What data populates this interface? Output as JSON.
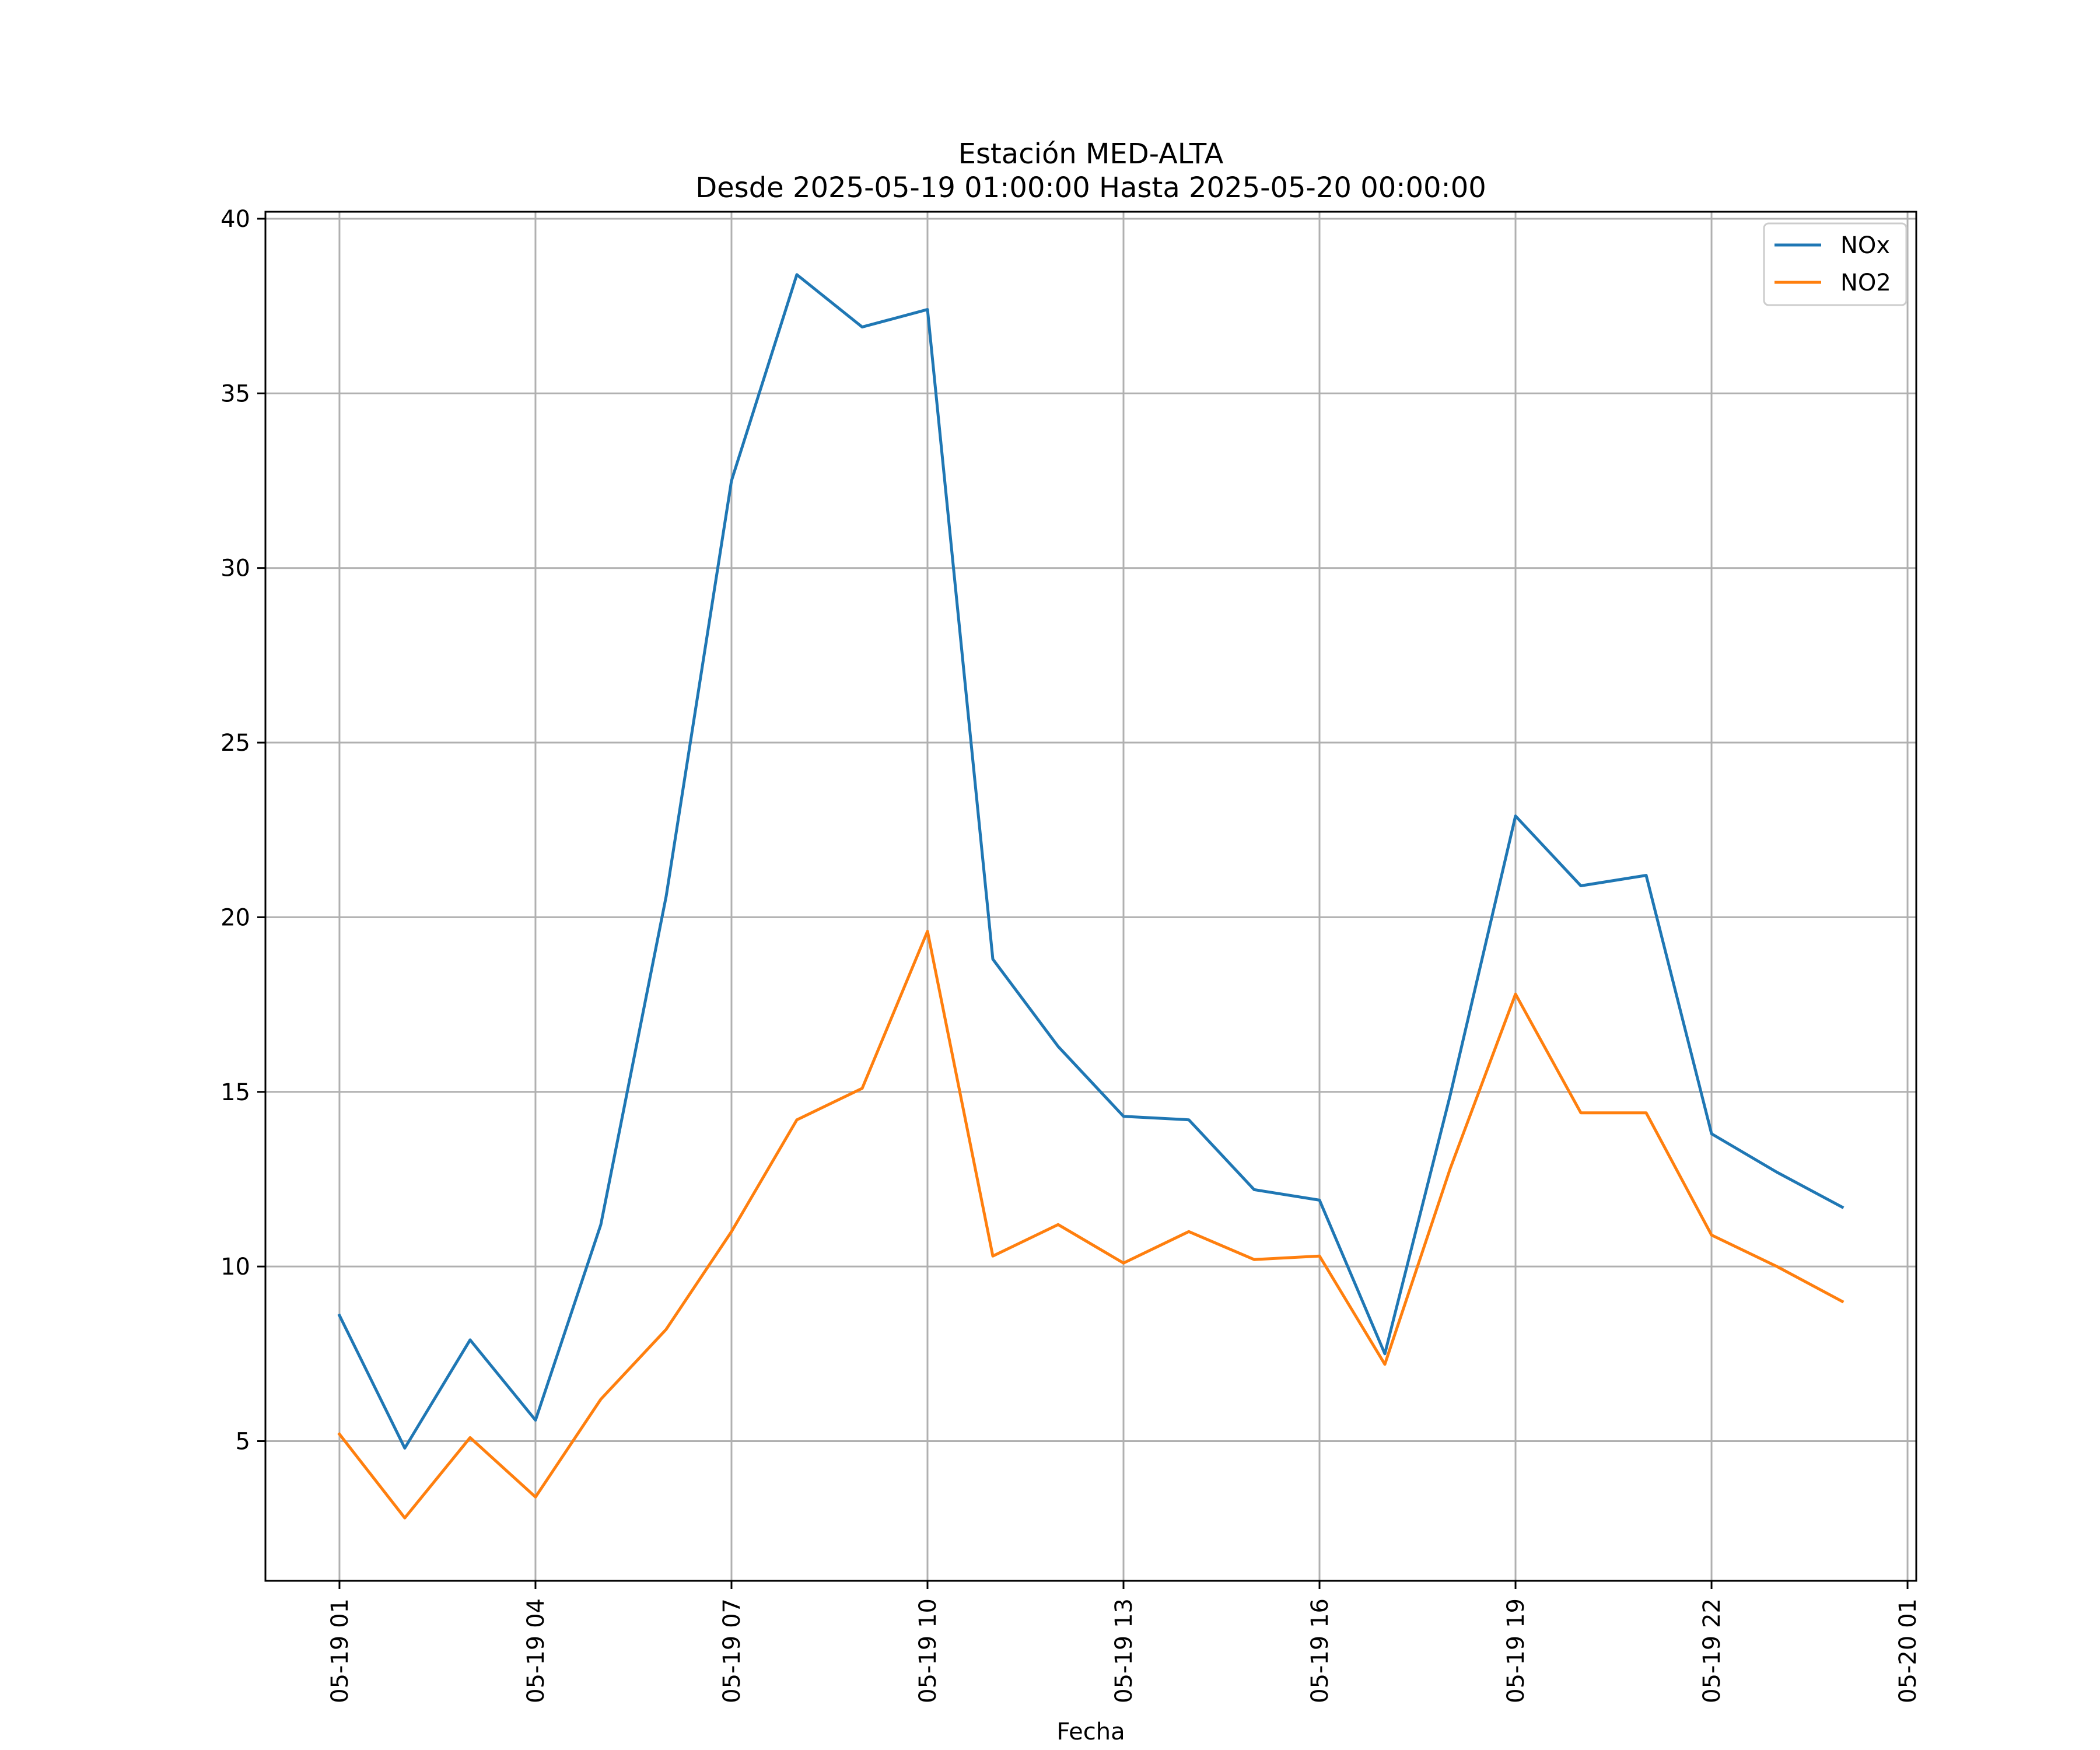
{
  "chart_data": {
    "type": "line",
    "title": "Estación MED-ALTA",
    "subtitle": "Desde 2025-05-19 01:00:00 Hasta 2025-05-20 00:00:00",
    "xlabel": "Fecha",
    "ylabel": "",
    "x": [
      "2025-05-19 01:00",
      "2025-05-19 02:00",
      "2025-05-19 03:00",
      "2025-05-19 04:00",
      "2025-05-19 05:00",
      "2025-05-19 06:00",
      "2025-05-19 07:00",
      "2025-05-19 08:00",
      "2025-05-19 09:00",
      "2025-05-19 10:00",
      "2025-05-19 11:00",
      "2025-05-19 12:00",
      "2025-05-19 13:00",
      "2025-05-19 14:00",
      "2025-05-19 15:00",
      "2025-05-19 16:00",
      "2025-05-19 17:00",
      "2025-05-19 18:00",
      "2025-05-19 19:00",
      "2025-05-19 20:00",
      "2025-05-19 21:00",
      "2025-05-19 22:00",
      "2025-05-19 23:00",
      "2025-05-20 00:00"
    ],
    "series": [
      {
        "name": "NOx",
        "color": "#1f77b4",
        "values": [
          8.6,
          4.8,
          7.9,
          5.6,
          11.2,
          20.6,
          32.5,
          38.4,
          36.9,
          37.4,
          18.8,
          16.3,
          14.3,
          14.2,
          12.2,
          11.9,
          7.5,
          14.9,
          22.9,
          20.9,
          21.2,
          13.8,
          12.7,
          11.7
        ]
      },
      {
        "name": "NO2",
        "color": "#ff7f0e",
        "values": [
          5.2,
          2.8,
          5.1,
          3.4,
          6.2,
          8.2,
          11.0,
          14.2,
          15.1,
          19.6,
          10.3,
          11.2,
          10.1,
          11.0,
          10.2,
          10.3,
          7.2,
          12.8,
          17.8,
          14.4,
          14.4,
          10.9,
          10.0,
          9.0
        ]
      }
    ],
    "x_ticks": [
      "05-19 01",
      "05-19 04",
      "05-19 07",
      "05-19 10",
      "05-19 13",
      "05-19 16",
      "05-19 19",
      "05-19 22",
      "05-20 01"
    ],
    "xlim": [
      "2025-05-18 23:52",
      "2025-05-20 01:08"
    ],
    "y_ticks": [
      "5",
      "10",
      "15",
      "20",
      "25",
      "30",
      "35",
      "40"
    ],
    "ylim": [
      1.0,
      40.2
    ],
    "grid": true,
    "legend_position": "top-right"
  }
}
